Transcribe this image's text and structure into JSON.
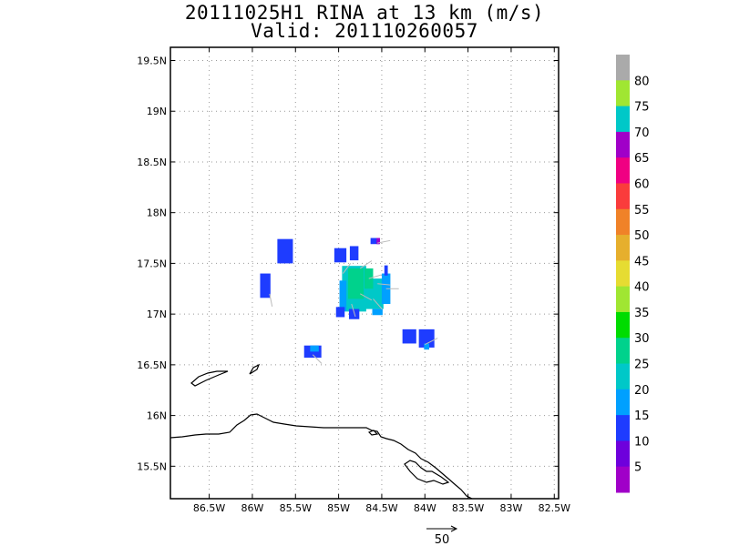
{
  "title": "20111025H1 RINA at 13 km (m/s)",
  "valid": "Valid: 201110260057",
  "lat_labels": [
    "19.5N",
    "19N",
    "18.5N",
    "18N",
    "17.5N",
    "17N",
    "16.5N",
    "16N",
    "15.5N"
  ],
  "lat_values": [
    19.5,
    19.0,
    18.5,
    18.0,
    17.5,
    17.0,
    16.5,
    16.0,
    15.5
  ],
  "lon_labels": [
    "86.5W",
    "86W",
    "85.5W",
    "85W",
    "84.5W",
    "84W",
    "83.5W",
    "83W",
    "82.5W"
  ],
  "lon_values": [
    -86.5,
    -86.0,
    -85.5,
    -85.0,
    -84.5,
    -84.0,
    -83.5,
    -83.0,
    -82.5
  ],
  "extent": {
    "lon_min": -86.95,
    "lon_max": -82.45,
    "lat_min": 15.18,
    "lat_max": 19.63
  },
  "colorbar": {
    "labels": [
      "5",
      "10",
      "15",
      "20",
      "25",
      "30",
      "35",
      "40",
      "45",
      "50",
      "55",
      "60",
      "65",
      "70",
      "75",
      "80"
    ],
    "colors": [
      "#a000c8",
      "#6e00dc",
      "#1e3cff",
      "#00a0ff",
      "#00c8c8",
      "#00d28c",
      "#00dc00",
      "#a0e632",
      "#e6dc32",
      "#e6af2d",
      "#f08228",
      "#fa3c3c",
      "#f00082",
      "#a000c8",
      "#00c8c8",
      "#a0e632",
      "#aaaaaa"
    ]
  },
  "vector_ref": {
    "label": "50"
  },
  "wind_cells": [
    {
      "lon": -85.62,
      "lat": 17.62,
      "w": 0.18,
      "h": 0.24,
      "color": "#1e3cff"
    },
    {
      "lon": -85.85,
      "lat": 17.28,
      "w": 0.12,
      "h": 0.24,
      "color": "#1e3cff"
    },
    {
      "lon": -85.3,
      "lat": 16.63,
      "w": 0.2,
      "h": 0.12,
      "color": "#1e3cff"
    },
    {
      "lon": -85.28,
      "lat": 16.66,
      "w": 0.1,
      "h": 0.06,
      "color": "#00a0ff"
    },
    {
      "lon": -84.98,
      "lat": 17.58,
      "w": 0.14,
      "h": 0.14,
      "color": "#1e3cff"
    },
    {
      "lon": -84.82,
      "lat": 17.6,
      "w": 0.1,
      "h": 0.14,
      "color": "#1e3cff"
    },
    {
      "lon": -84.58,
      "lat": 17.72,
      "w": 0.1,
      "h": 0.06,
      "color": "#1e3cff"
    },
    {
      "lon": -84.54,
      "lat": 17.72,
      "w": 0.04,
      "h": 0.06,
      "color": "#a000c8"
    },
    {
      "lon": -84.82,
      "lat": 17.25,
      "w": 0.28,
      "h": 0.45,
      "color": "#00c8c8"
    },
    {
      "lon": -84.6,
      "lat": 17.2,
      "w": 0.24,
      "h": 0.3,
      "color": "#00c8c8"
    },
    {
      "lon": -84.8,
      "lat": 17.3,
      "w": 0.18,
      "h": 0.3,
      "color": "#00d28c"
    },
    {
      "lon": -84.65,
      "lat": 17.35,
      "w": 0.1,
      "h": 0.2,
      "color": "#00d28c"
    },
    {
      "lon": -84.95,
      "lat": 17.18,
      "w": 0.08,
      "h": 0.3,
      "color": "#00a0ff"
    },
    {
      "lon": -84.98,
      "lat": 17.02,
      "w": 0.1,
      "h": 0.1,
      "color": "#1e3cff"
    },
    {
      "lon": -84.82,
      "lat": 17.0,
      "w": 0.12,
      "h": 0.1,
      "color": "#1e3cff"
    },
    {
      "lon": -84.55,
      "lat": 17.02,
      "w": 0.12,
      "h": 0.06,
      "color": "#00a0ff"
    },
    {
      "lon": -84.45,
      "lat": 17.25,
      "w": 0.1,
      "h": 0.3,
      "color": "#00a0ff"
    },
    {
      "lon": -84.45,
      "lat": 17.43,
      "w": 0.04,
      "h": 0.1,
      "color": "#1e3cff"
    },
    {
      "lon": -84.18,
      "lat": 16.78,
      "w": 0.16,
      "h": 0.14,
      "color": "#1e3cff"
    },
    {
      "lon": -83.98,
      "lat": 16.76,
      "w": 0.18,
      "h": 0.18,
      "color": "#1e3cff"
    },
    {
      "lon": -83.98,
      "lat": 16.68,
      "w": 0.06,
      "h": 0.06,
      "color": "#00a0ff"
    }
  ]
}
